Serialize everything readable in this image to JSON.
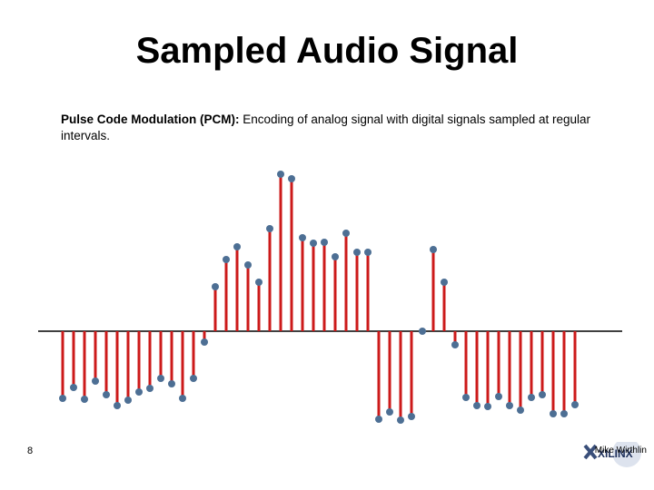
{
  "chart_data": {
    "type": "stem",
    "title": "Sampled Audio Signal",
    "values": [
      -74,
      -62,
      -75,
      -55,
      -70,
      -82,
      -76,
      -67,
      -63,
      -52,
      -58,
      -74,
      -52,
      -12,
      49,
      79,
      93,
      73,
      54,
      113,
      173,
      168,
      103,
      97,
      98,
      82,
      108,
      87,
      87,
      -97,
      -89,
      -98,
      -94,
      0,
      90,
      54,
      -15,
      -73,
      -82,
      -83,
      -72,
      -82,
      -87,
      -73,
      -70,
      -91,
      -91,
      -81
    ],
    "stem_color": "#cc1a1a",
    "marker_color": "#4d6f94",
    "baseline_color": "#000000"
  },
  "slide": {
    "description_term": "Pulse Code Modulation (PCM):",
    "description": "Encoding of analog signal with digital signals sampled at regular intervals.",
    "page_number": "8",
    "author": "Mike Wirthlin",
    "logo": "XILINX"
  }
}
